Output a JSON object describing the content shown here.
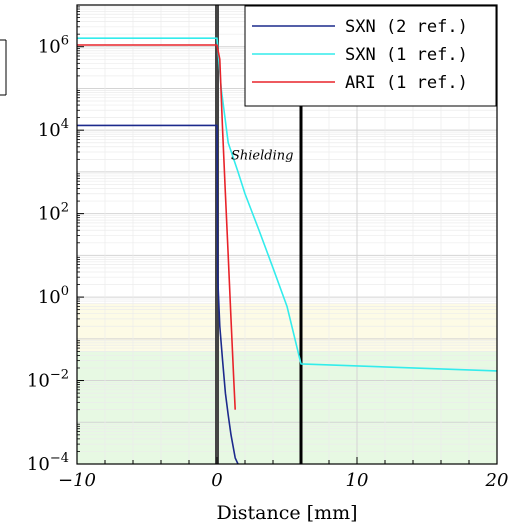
{
  "chart_data": {
    "type": "line",
    "xlabel": "Distance [mm]",
    "ylabel": "",
    "xlim": [
      -10,
      20
    ],
    "ylim_log10": [
      -4,
      7
    ],
    "yscale": "log",
    "grid": true,
    "legend_position": "top-right",
    "x_ticks": [
      {
        "value": -10,
        "label": "−10"
      },
      {
        "value": 0,
        "label": "0"
      },
      {
        "value": 10,
        "label": "10"
      },
      {
        "value": 20,
        "label": "20"
      }
    ],
    "y_ticks": [
      {
        "exp": -4,
        "base": "10",
        "sup": "−4"
      },
      {
        "exp": -2,
        "base": "10",
        "sup": "−2"
      },
      {
        "exp": 0,
        "base": "10",
        "sup": "0"
      },
      {
        "exp": 2,
        "base": "10",
        "sup": "2"
      },
      {
        "exp": 4,
        "base": "10",
        "sup": "4"
      },
      {
        "exp": 6,
        "base": "10",
        "sup": "6"
      }
    ],
    "bands": [
      {
        "from": 0.05,
        "to": 0.7,
        "color": "#fdfbe6"
      },
      {
        "from": 0.0001,
        "to": 0.05,
        "color": "#e7f9e3"
      }
    ],
    "vlines": [
      {
        "x": 0,
        "color": "#444444",
        "width": 4
      },
      {
        "x": 6,
        "color": "#000000",
        "width": 3
      }
    ],
    "annotations": [
      {
        "text": "Shielding",
        "x": 1,
        "y": 2000
      }
    ],
    "series": [
      {
        "name": "SXN (2 ref.)",
        "color": "#1c2a8c",
        "points": [
          [
            -10,
            13000
          ],
          [
            0,
            13000
          ],
          [
            0.05,
            3
          ],
          [
            0.2,
            0.2
          ],
          [
            0.4,
            0.03
          ],
          [
            0.6,
            0.005
          ],
          [
            0.8,
            0.0015
          ],
          [
            1.0,
            0.0005
          ],
          [
            1.3,
            0.00014
          ],
          [
            1.5,
            0.0001
          ]
        ]
      },
      {
        "name": "SXN (1 ref.)",
        "color": "#33ecec",
        "points": [
          [
            -10,
            1600000
          ],
          [
            0,
            1600000
          ],
          [
            0.3,
            100000
          ],
          [
            0.8,
            5000
          ],
          [
            1.5,
            1000
          ],
          [
            2,
            300
          ],
          [
            3,
            40
          ],
          [
            4,
            5
          ],
          [
            5,
            0.6
          ],
          [
            6,
            0.025
          ],
          [
            20,
            0.017
          ]
        ]
      },
      {
        "name": "ARI (1 ref.)",
        "color": "#e8232a",
        "points": [
          [
            -10,
            1100000
          ],
          [
            0,
            1100000
          ],
          [
            0.2,
            500000
          ],
          [
            0.4,
            10000
          ],
          [
            0.6,
            300
          ],
          [
            0.8,
            10
          ],
          [
            1.0,
            0.3
          ],
          [
            1.2,
            0.01
          ],
          [
            1.3,
            0.002
          ]
        ]
      }
    ]
  }
}
